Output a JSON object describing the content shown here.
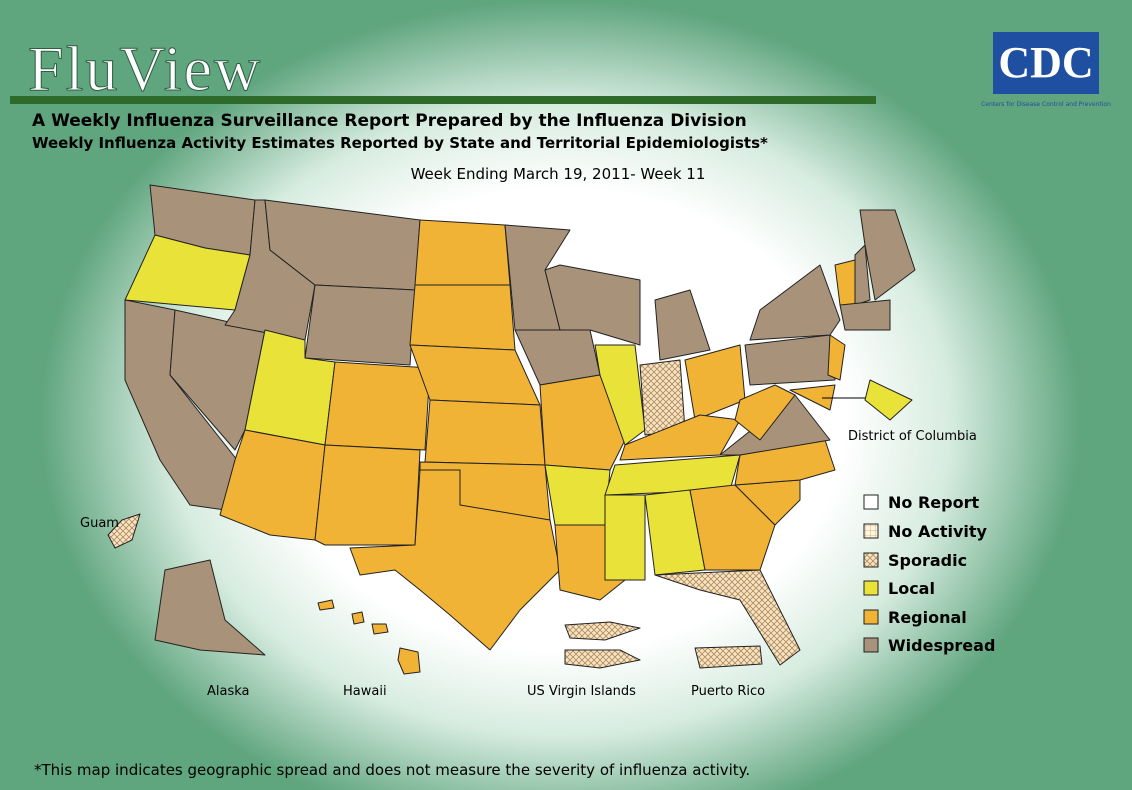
{
  "header": {
    "title": "FluView",
    "subtitle": "A Weekly Influenza Surveillance Report Prepared by the Influenza Division",
    "subtitle2": "Weekly Influenza Activity Estimates Reported by State and Territorial Epidemiologists*",
    "week": "Week Ending March 19, 2011- Week 11"
  },
  "logo": {
    "mark": "CDC",
    "caption": "Centers for Disease Control and Prevention"
  },
  "map": {
    "labels": {
      "dc": "District of Columbia",
      "guam": "Guam",
      "alaska": "Alaska",
      "hawaii": "Hawaii",
      "virgin_islands": "US Virgin Islands",
      "puerto_rico": "Puerto Rico"
    }
  },
  "legend": [
    "No Report",
    "No Activity",
    "Sporadic",
    "Local",
    "Regional",
    "Widespread"
  ],
  "footnote": "*This map indicates geographic spread and does not measure the severity of influenza activity."
}
